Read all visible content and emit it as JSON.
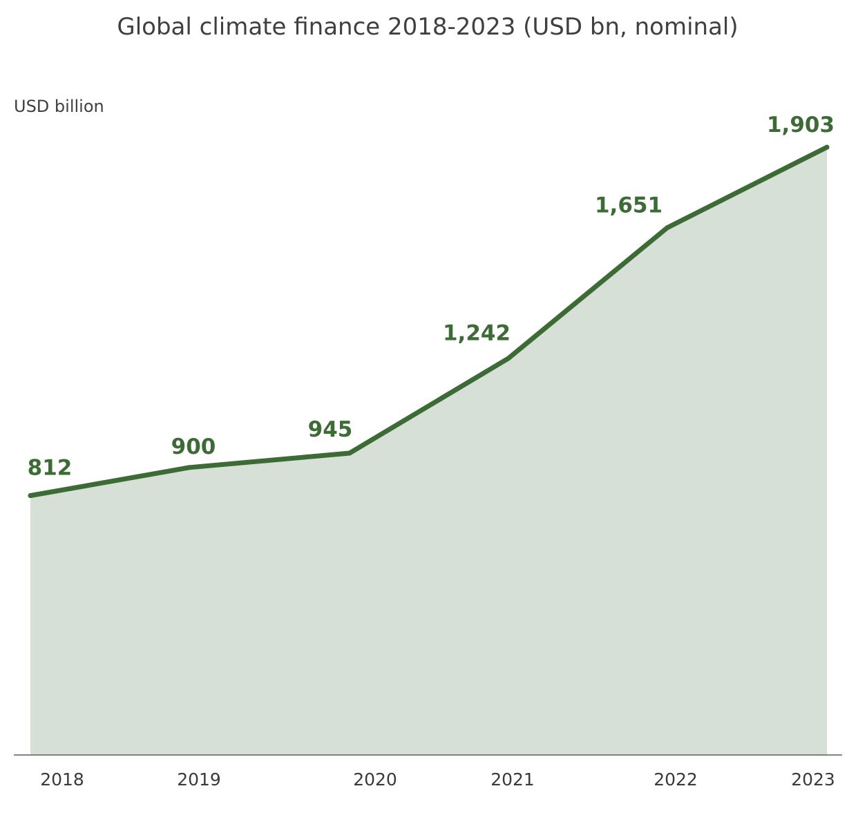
{
  "colors": {
    "line": "#3d6b35",
    "area": "#d6e0d6",
    "axis": "#5a5a5a",
    "title": "#3f3f3f"
  },
  "chart_data": {
    "type": "area",
    "title": "Global climate finance 2018-2023 (USD bn, nominal)",
    "ylabel": "USD billion",
    "xlabel": "",
    "x": [
      2018,
      2019,
      2020,
      2021,
      2022,
      2023
    ],
    "tick_labels": [
      "2018",
      "2019",
      "2020",
      "2021",
      "2022",
      "2023"
    ],
    "values": [
      812,
      900,
      945,
      1242,
      1651,
      1903
    ],
    "data_labels": [
      "812",
      "900",
      "945",
      "1,242",
      "1,651",
      "1,903"
    ],
    "ylim": [
      0,
      2000
    ],
    "grid": false,
    "legend": "none"
  }
}
